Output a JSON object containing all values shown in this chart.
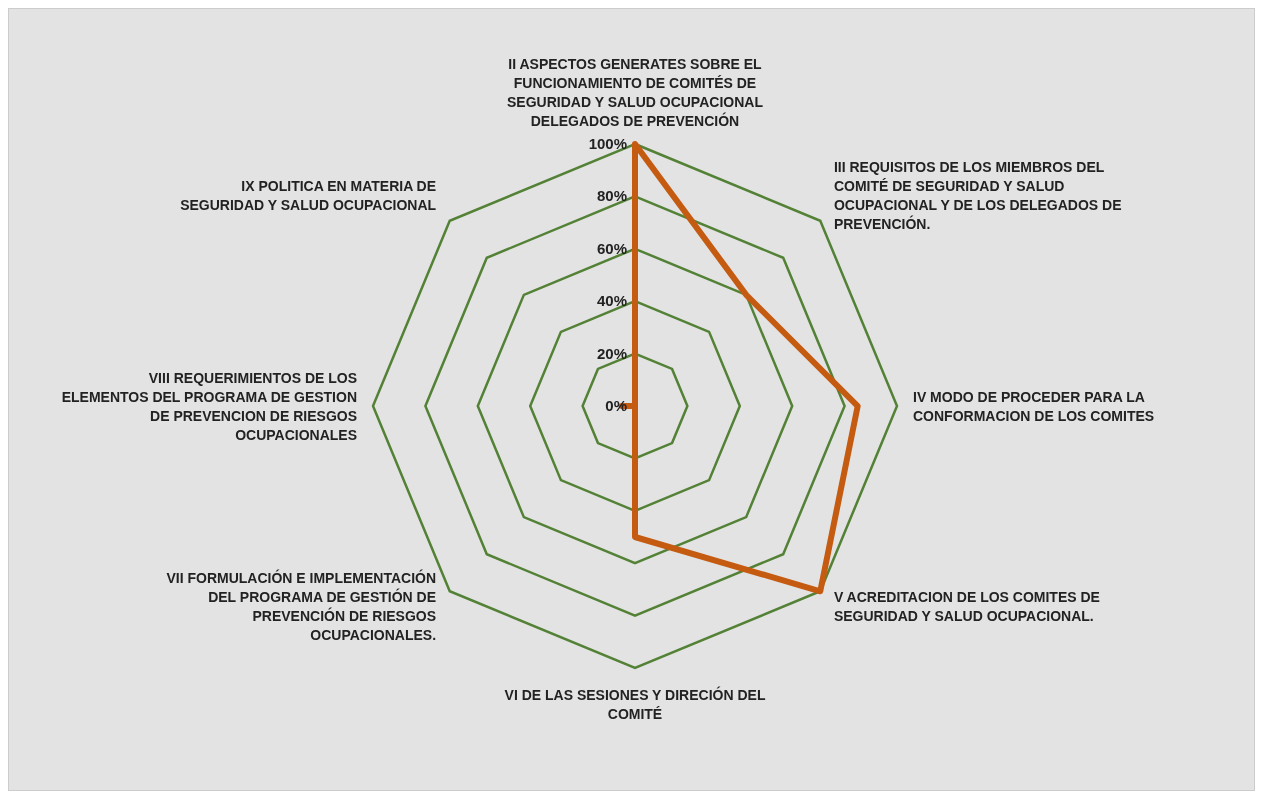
{
  "chart_data": {
    "type": "radar",
    "categories": [
      "II ASPECTOS GENERATES SOBRE EL FUNCIONAMIENTO DE COMITÉS DE SEGURIDAD Y SALUD OCUPACIONAL DELEGADOS DE PREVENCIÓN",
      "III REQUISITOS DE LOS MIEMBROS DEL COMITÉ DE SEGURIDAD Y SALUD OCUPACIONAL Y DE LOS DELEGADOS DE PREVENCIÓN.",
      "IV MODO DE PROCEDER PARA LA CONFORMACION DE LOS COMITES",
      "V ACREDITACION DE LOS COMITES DE SEGURIDAD Y SALUD OCUPACIONAL.",
      "VI DE LAS SESIONES Y DIRECIÓN DEL COMITÉ",
      "VII FORMULACIÓN E IMPLEMENTACIÓN DEL PROGRAMA DE GESTIÓN DE PREVENCIÓN DE RIESGOS OCUPACIONALES.",
      "VIII REQUERIMIENTOS DE LOS ELEMENTOS DEL PROGRAMA DE GESTION DE PREVENCION DE RIESGOS OCUPACIONALES",
      "IX  POLITICA EN MATERIA DE SEGURIDAD Y SALUD OCUPACIONAL"
    ],
    "series": [
      {
        "color": "#c55a11",
        "values": [
          100,
          60,
          85,
          100,
          50,
          0,
          5,
          0
        ]
      }
    ],
    "ylim": [
      0,
      100
    ],
    "yticks": [
      {
        "value": 0,
        "label": "0%"
      },
      {
        "value": 20,
        "label": "20%"
      },
      {
        "value": 40,
        "label": "40%"
      },
      {
        "value": 60,
        "label": "60%"
      },
      {
        "value": 80,
        "label": "80%"
      },
      {
        "value": 100,
        "label": "100%"
      }
    ],
    "grid": true,
    "marker": "none",
    "line_style": "solid"
  }
}
